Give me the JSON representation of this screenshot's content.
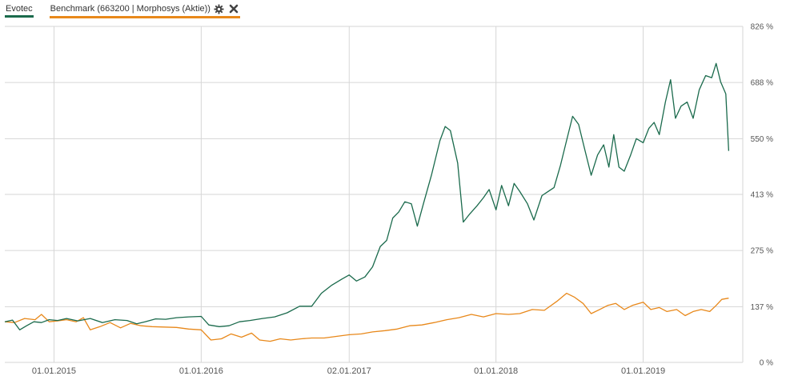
{
  "legend": {
    "series1_label": "Evotec",
    "series2_label": "Benchmark (663200 | Morphosys (Aktie))",
    "settings_icon": "gear-icon",
    "remove_icon": "close-icon"
  },
  "colors": {
    "evotec": "#1a6a4c",
    "benchmark": "#e8881a",
    "grid": "#d6d6d6"
  },
  "chart_data": {
    "type": "line",
    "yticks": [
      {
        "value": 0,
        "label": "0 %"
      },
      {
        "value": 137,
        "label": "137 %"
      },
      {
        "value": 275,
        "label": "275 %"
      },
      {
        "value": 413,
        "label": "413 %"
      },
      {
        "value": 550,
        "label": "550 %"
      },
      {
        "value": 688,
        "label": "688 %"
      },
      {
        "value": 826,
        "label": "826 %"
      }
    ],
    "ylim": [
      0,
      826
    ],
    "xlim": [
      "2014-09-01",
      "2019-09-05"
    ],
    "xticks": [
      {
        "date": "2015-01-01",
        "label": "01.01.2015"
      },
      {
        "date": "2016-01-01",
        "label": "01.01.2016"
      },
      {
        "date": "2017-01-02",
        "label": "02.01.2017"
      },
      {
        "date": "2018-01-01",
        "label": "01.01.2018"
      },
      {
        "date": "2019-01-01",
        "label": "01.01.2019"
      }
    ],
    "grid": true,
    "legend_position": "top-left",
    "series": [
      {
        "name": "Evotec",
        "points": [
          [
            "2014-09-01",
            100
          ],
          [
            "2014-09-20",
            104
          ],
          [
            "2014-10-08",
            80
          ],
          [
            "2014-10-25",
            90
          ],
          [
            "2014-11-12",
            100
          ],
          [
            "2014-12-01",
            98
          ],
          [
            "2014-12-20",
            105
          ],
          [
            "2015-01-10",
            103
          ],
          [
            "2015-02-01",
            108
          ],
          [
            "2015-03-01",
            102
          ],
          [
            "2015-04-01",
            108
          ],
          [
            "2015-05-01",
            98
          ],
          [
            "2015-06-01",
            105
          ],
          [
            "2015-07-01",
            103
          ],
          [
            "2015-07-25",
            95
          ],
          [
            "2015-08-15",
            100
          ],
          [
            "2015-09-10",
            107
          ],
          [
            "2015-10-05",
            106
          ],
          [
            "2015-11-01",
            110
          ],
          [
            "2015-12-01",
            112
          ],
          [
            "2016-01-01",
            113
          ],
          [
            "2016-01-20",
            92
          ],
          [
            "2016-02-15",
            88
          ],
          [
            "2016-03-10",
            90
          ],
          [
            "2016-04-05",
            100
          ],
          [
            "2016-05-01",
            103
          ],
          [
            "2016-06-01",
            108
          ],
          [
            "2016-07-01",
            112
          ],
          [
            "2016-08-01",
            122
          ],
          [
            "2016-09-01",
            138
          ],
          [
            "2016-10-01",
            138
          ],
          [
            "2016-10-25",
            170
          ],
          [
            "2016-11-20",
            190
          ],
          [
            "2016-12-15",
            205
          ],
          [
            "2017-01-02",
            215
          ],
          [
            "2017-01-20",
            200
          ],
          [
            "2017-02-10",
            210
          ],
          [
            "2017-03-01",
            235
          ],
          [
            "2017-03-20",
            285
          ],
          [
            "2017-04-05",
            300
          ],
          [
            "2017-04-20",
            355
          ],
          [
            "2017-05-05",
            370
          ],
          [
            "2017-05-20",
            395
          ],
          [
            "2017-06-05",
            390
          ],
          [
            "2017-06-20",
            335
          ],
          [
            "2017-07-05",
            390
          ],
          [
            "2017-07-25",
            460
          ],
          [
            "2017-08-15",
            545
          ],
          [
            "2017-08-28",
            580
          ],
          [
            "2017-09-10",
            570
          ],
          [
            "2017-09-28",
            490
          ],
          [
            "2017-10-12",
            345
          ],
          [
            "2017-10-28",
            365
          ],
          [
            "2017-11-15",
            385
          ],
          [
            "2017-12-01",
            405
          ],
          [
            "2017-12-15",
            425
          ],
          [
            "2018-01-01",
            375
          ],
          [
            "2018-01-15",
            435
          ],
          [
            "2018-02-01",
            385
          ],
          [
            "2018-02-15",
            440
          ],
          [
            "2018-03-01",
            420
          ],
          [
            "2018-03-20",
            390
          ],
          [
            "2018-04-05",
            350
          ],
          [
            "2018-04-25",
            410
          ],
          [
            "2018-05-10",
            420
          ],
          [
            "2018-05-25",
            430
          ],
          [
            "2018-06-10",
            485
          ],
          [
            "2018-06-25",
            545
          ],
          [
            "2018-07-10",
            605
          ],
          [
            "2018-07-25",
            585
          ],
          [
            "2018-08-10",
            520
          ],
          [
            "2018-08-25",
            460
          ],
          [
            "2018-09-10",
            510
          ],
          [
            "2018-09-25",
            535
          ],
          [
            "2018-10-08",
            480
          ],
          [
            "2018-10-20",
            560
          ],
          [
            "2018-11-02",
            480
          ],
          [
            "2018-11-15",
            470
          ],
          [
            "2018-12-01",
            510
          ],
          [
            "2018-12-15",
            550
          ],
          [
            "2019-01-01",
            540
          ],
          [
            "2019-01-15",
            575
          ],
          [
            "2019-01-28",
            590
          ],
          [
            "2019-02-10",
            560
          ],
          [
            "2019-02-25",
            640
          ],
          [
            "2019-03-10",
            695
          ],
          [
            "2019-03-22",
            600
          ],
          [
            "2019-04-05",
            630
          ],
          [
            "2019-04-20",
            640
          ],
          [
            "2019-05-05",
            600
          ],
          [
            "2019-05-20",
            670
          ],
          [
            "2019-06-05",
            705
          ],
          [
            "2019-06-20",
            700
          ],
          [
            "2019-07-01",
            735
          ],
          [
            "2019-07-12",
            690
          ],
          [
            "2019-07-25",
            660
          ],
          [
            "2019-08-01",
            520
          ]
        ]
      },
      {
        "name": "Benchmark (663200 | Morphosys (Aktie))",
        "points": [
          [
            "2014-09-01",
            100
          ],
          [
            "2014-09-25",
            98
          ],
          [
            "2014-10-20",
            108
          ],
          [
            "2014-11-15",
            105
          ],
          [
            "2014-12-01",
            118
          ],
          [
            "2014-12-20",
            100
          ],
          [
            "2015-01-10",
            102
          ],
          [
            "2015-02-01",
            105
          ],
          [
            "2015-02-25",
            100
          ],
          [
            "2015-03-15",
            110
          ],
          [
            "2015-04-01",
            80
          ],
          [
            "2015-04-25",
            88
          ],
          [
            "2015-05-20",
            98
          ],
          [
            "2015-06-15",
            85
          ],
          [
            "2015-07-10",
            96
          ],
          [
            "2015-08-05",
            90
          ],
          [
            "2015-09-01",
            88
          ],
          [
            "2015-10-01",
            87
          ],
          [
            "2015-11-01",
            86
          ],
          [
            "2015-12-01",
            82
          ],
          [
            "2016-01-01",
            80
          ],
          [
            "2016-01-25",
            55
          ],
          [
            "2016-02-20",
            58
          ],
          [
            "2016-03-15",
            70
          ],
          [
            "2016-04-10",
            62
          ],
          [
            "2016-05-05",
            72
          ],
          [
            "2016-05-25",
            55
          ],
          [
            "2016-06-20",
            52
          ],
          [
            "2016-07-15",
            58
          ],
          [
            "2016-08-10",
            55
          ],
          [
            "2016-09-05",
            58
          ],
          [
            "2016-10-01",
            60
          ],
          [
            "2016-11-01",
            60
          ],
          [
            "2016-12-01",
            64
          ],
          [
            "2017-01-02",
            68
          ],
          [
            "2017-02-01",
            70
          ],
          [
            "2017-03-01",
            75
          ],
          [
            "2017-04-01",
            78
          ],
          [
            "2017-05-01",
            82
          ],
          [
            "2017-06-01",
            90
          ],
          [
            "2017-07-01",
            92
          ],
          [
            "2017-08-01",
            98
          ],
          [
            "2017-09-01",
            105
          ],
          [
            "2017-10-01",
            110
          ],
          [
            "2017-11-01",
            118
          ],
          [
            "2017-12-01",
            112
          ],
          [
            "2018-01-01",
            120
          ],
          [
            "2018-02-01",
            118
          ],
          [
            "2018-03-01",
            120
          ],
          [
            "2018-04-01",
            130
          ],
          [
            "2018-05-01",
            128
          ],
          [
            "2018-06-01",
            150
          ],
          [
            "2018-06-25",
            170
          ],
          [
            "2018-07-15",
            160
          ],
          [
            "2018-08-05",
            145
          ],
          [
            "2018-08-25",
            120
          ],
          [
            "2018-09-15",
            130
          ],
          [
            "2018-10-05",
            140
          ],
          [
            "2018-10-25",
            145
          ],
          [
            "2018-11-15",
            130
          ],
          [
            "2018-12-05",
            140
          ],
          [
            "2019-01-01",
            148
          ],
          [
            "2019-01-20",
            130
          ],
          [
            "2019-02-10",
            135
          ],
          [
            "2019-03-01",
            125
          ],
          [
            "2019-03-25",
            130
          ],
          [
            "2019-04-15",
            115
          ],
          [
            "2019-05-05",
            125
          ],
          [
            "2019-05-25",
            130
          ],
          [
            "2019-06-15",
            125
          ],
          [
            "2019-07-01",
            140
          ],
          [
            "2019-07-15",
            155
          ],
          [
            "2019-08-01",
            158
          ]
        ]
      }
    ]
  }
}
